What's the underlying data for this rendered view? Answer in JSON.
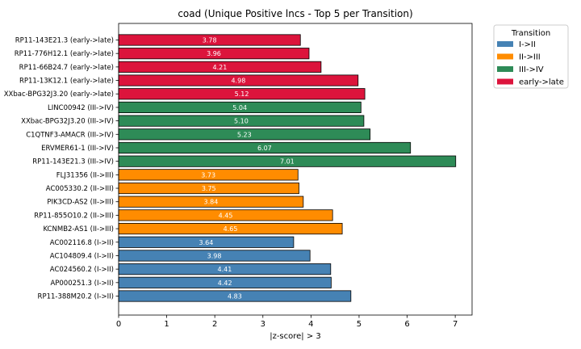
{
  "chart_data": {
    "type": "bar",
    "orientation": "horizontal",
    "title": "coad (Unique Positive lncs - Top 5 per Transition)",
    "xlabel": "|z-score| > 3",
    "ylabel": "",
    "xlim": [
      0,
      7.35
    ],
    "xticks": [
      0,
      1,
      2,
      3,
      4,
      5,
      6,
      7
    ],
    "grid": false,
    "legend": {
      "title": "Transition",
      "placement": "outside upper right",
      "entries": [
        {
          "label": "I->II",
          "color": "#4682b4"
        },
        {
          "label": "II->III",
          "color": "#ff8c00"
        },
        {
          "label": "III->IV",
          "color": "#2e8b57"
        },
        {
          "label": "early->late",
          "color": "#dc143c"
        }
      ]
    },
    "bars": [
      {
        "label": "RP11-143E21.3 (early->late)",
        "value": 3.78,
        "value_label": "3.78",
        "group": "early->late"
      },
      {
        "label": "RP11-776H12.1 (early->late)",
        "value": 3.96,
        "value_label": "3.96",
        "group": "early->late"
      },
      {
        "label": "RP11-66B24.7 (early->late)",
        "value": 4.21,
        "value_label": "4.21",
        "group": "early->late"
      },
      {
        "label": "RP11-13K12.1 (early->late)",
        "value": 4.98,
        "value_label": "4.98",
        "group": "early->late"
      },
      {
        "label": "XXbac-BPG32J3.20 (early->late)",
        "value": 5.12,
        "value_label": "5.12",
        "group": "early->late"
      },
      {
        "label": "LINC00942 (III->IV)",
        "value": 5.04,
        "value_label": "5.04",
        "group": "III->IV"
      },
      {
        "label": "XXbac-BPG32J3.20 (III->IV)",
        "value": 5.1,
        "value_label": "5.10",
        "group": "III->IV"
      },
      {
        "label": "C1QTNF3-AMACR (III->IV)",
        "value": 5.23,
        "value_label": "5.23",
        "group": "III->IV"
      },
      {
        "label": "ERVMER61-1 (III->IV)",
        "value": 6.07,
        "value_label": "6.07",
        "group": "III->IV"
      },
      {
        "label": "RP11-143E21.3 (III->IV)",
        "value": 7.01,
        "value_label": "7.01",
        "group": "III->IV"
      },
      {
        "label": "FLJ31356 (II->III)",
        "value": 3.73,
        "value_label": "3.73",
        "group": "II->III"
      },
      {
        "label": "AC005330.2 (II->III)",
        "value": 3.75,
        "value_label": "3.75",
        "group": "II->III"
      },
      {
        "label": "PIK3CD-AS2 (II->III)",
        "value": 3.84,
        "value_label": "3.84",
        "group": "II->III"
      },
      {
        "label": "RP11-855O10.2 (II->III)",
        "value": 4.45,
        "value_label": "4.45",
        "group": "II->III"
      },
      {
        "label": "KCNMB2-AS1 (II->III)",
        "value": 4.65,
        "value_label": "4.65",
        "group": "II->III"
      },
      {
        "label": "AC002116.8 (I->II)",
        "value": 3.64,
        "value_label": "3.64",
        "group": "I->II"
      },
      {
        "label": "AC104809.4 (I->II)",
        "value": 3.98,
        "value_label": "3.98",
        "group": "I->II"
      },
      {
        "label": "AC024560.2 (I->II)",
        "value": 4.41,
        "value_label": "4.41",
        "group": "I->II"
      },
      {
        "label": "AP000251.3 (I->II)",
        "value": 4.42,
        "value_label": "4.42",
        "group": "I->II"
      },
      {
        "label": "RP11-388M20.2 (I->II)",
        "value": 4.83,
        "value_label": "4.83",
        "group": "I->II"
      }
    ]
  }
}
